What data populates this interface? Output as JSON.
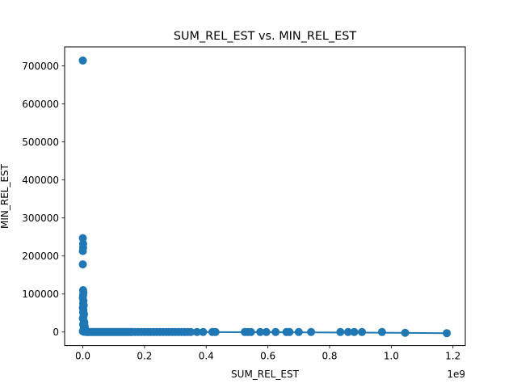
{
  "chart_data": {
    "type": "scatter",
    "title": "SUM_REL_EST vs. MIN_REL_EST",
    "xlabel": "SUM_REL_EST",
    "ylabel": "MIN_REL_EST",
    "x_offset_text": "1e9",
    "xlim": [
      -0.059,
      1.24
    ],
    "ylim": [
      -35700,
      750000
    ],
    "x_ticks": [
      0.0,
      0.2,
      0.4,
      0.6,
      0.8,
      1.0,
      1.2
    ],
    "x_tick_labels": [
      "0.0",
      "0.2",
      "0.4",
      "0.6",
      "0.8",
      "1.0",
      "1.2"
    ],
    "y_ticks": [
      0,
      100000,
      200000,
      300000,
      400000,
      500000,
      600000,
      700000
    ],
    "y_tick_labels": [
      "0",
      "100000",
      "200000",
      "300000",
      "400000",
      "500000",
      "600000",
      "700000"
    ],
    "grid": false,
    "legend": "none",
    "series": [
      {
        "color": "#1f77b4",
        "marker": "circle",
        "points": [
          [
            0.0,
            714000
          ],
          [
            0.0,
            247000
          ],
          [
            0.001,
            232000
          ],
          [
            0.001,
            222000
          ],
          [
            0.0,
            213000
          ],
          [
            0.0,
            178000
          ],
          [
            0.001,
            110000
          ],
          [
            0.002,
            103000
          ],
          [
            0.001,
            97000
          ],
          [
            0.0,
            90000
          ],
          [
            0.002,
            82000
          ],
          [
            0.001,
            75000
          ],
          [
            0.003,
            70000
          ],
          [
            0.0,
            64000
          ],
          [
            0.002,
            58000
          ],
          [
            0.001,
            52000
          ],
          [
            0.004,
            47000
          ],
          [
            0.002,
            41000
          ],
          [
            0.0,
            36000
          ],
          [
            0.003,
            30000
          ],
          [
            0.005,
            25000
          ],
          [
            0.001,
            20000
          ],
          [
            0.006,
            15000
          ],
          [
            0.003,
            11000
          ],
          [
            0.008,
            7000
          ],
          [
            0.002,
            4000
          ],
          [
            0.0,
            2000
          ],
          [
            0.01,
            1500
          ],
          [
            0.004,
            500
          ],
          [
            0.012,
            0
          ],
          [
            0.015,
            0
          ],
          [
            0.02,
            0
          ],
          [
            0.025,
            0
          ],
          [
            0.03,
            0
          ],
          [
            0.035,
            0
          ],
          [
            0.04,
            0
          ],
          [
            0.045,
            0
          ],
          [
            0.05,
            0
          ],
          [
            0.055,
            0
          ],
          [
            0.06,
            0
          ],
          [
            0.065,
            0
          ],
          [
            0.07,
            0
          ],
          [
            0.075,
            0
          ],
          [
            0.08,
            0
          ],
          [
            0.085,
            0
          ],
          [
            0.09,
            0
          ],
          [
            0.095,
            0
          ],
          [
            0.1,
            0
          ],
          [
            0.105,
            0
          ],
          [
            0.11,
            0
          ],
          [
            0.115,
            0
          ],
          [
            0.12,
            0
          ],
          [
            0.125,
            0
          ],
          [
            0.13,
            0
          ],
          [
            0.135,
            0
          ],
          [
            0.14,
            0
          ],
          [
            0.145,
            0
          ],
          [
            0.15,
            0
          ],
          [
            0.155,
            0
          ],
          [
            0.16,
            0
          ],
          [
            0.17,
            0
          ],
          [
            0.18,
            0
          ],
          [
            0.19,
            0
          ],
          [
            0.2,
            0
          ],
          [
            0.21,
            0
          ],
          [
            0.22,
            0
          ],
          [
            0.23,
            0
          ],
          [
            0.24,
            0
          ],
          [
            0.25,
            0
          ],
          [
            0.26,
            0
          ],
          [
            0.27,
            0
          ],
          [
            0.28,
            0
          ],
          [
            0.29,
            0
          ],
          [
            0.3,
            0
          ],
          [
            0.31,
            0
          ],
          [
            0.32,
            0
          ],
          [
            0.33,
            0
          ],
          [
            0.34,
            0
          ],
          [
            0.35,
            0
          ],
          [
            0.37,
            0
          ],
          [
            0.39,
            0
          ],
          [
            0.42,
            0
          ],
          [
            0.43,
            0
          ],
          [
            0.525,
            0
          ],
          [
            0.535,
            0
          ],
          [
            0.545,
            0
          ],
          [
            0.575,
            0
          ],
          [
            0.595,
            0
          ],
          [
            0.625,
            0
          ],
          [
            0.66,
            0
          ],
          [
            0.67,
            0
          ],
          [
            0.7,
            0
          ],
          [
            0.74,
            0
          ],
          [
            0.835,
            0
          ],
          [
            0.86,
            0
          ],
          [
            0.88,
            0
          ],
          [
            0.905,
            0
          ],
          [
            0.97,
            0
          ],
          [
            1.045,
            -2000
          ],
          [
            1.18,
            -3000
          ]
        ],
        "line": [
          [
            0.0,
            500
          ],
          [
            0.3,
            0
          ],
          [
            0.6,
            -500
          ],
          [
            0.9,
            -1500
          ],
          [
            1.18,
            -3000
          ]
        ]
      }
    ]
  }
}
